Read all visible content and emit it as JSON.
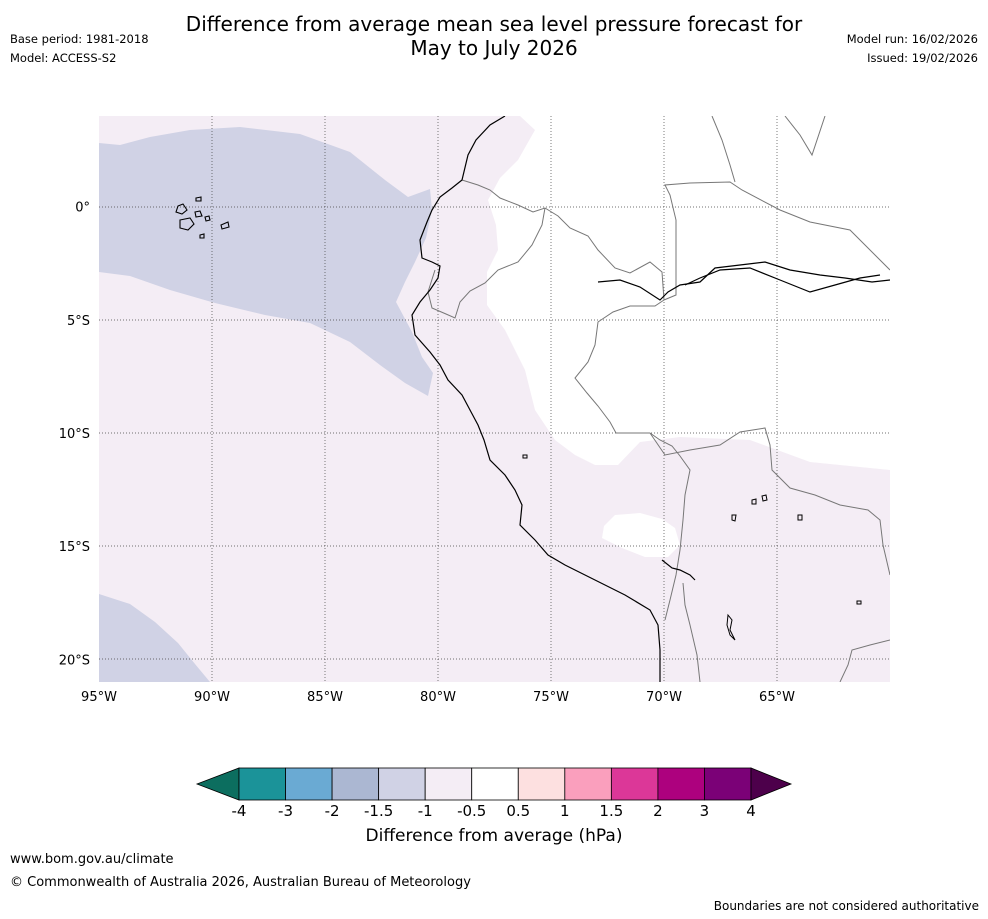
{
  "title": {
    "line1": "Difference from average mean sea level pressure forecast for",
    "line2": "May to July 2026"
  },
  "meta_left": {
    "base_period": "Base period: 1981-2018",
    "model": "Model: ACCESS-S2"
  },
  "meta_right": {
    "model_run": "Model run: 16/02/2026",
    "issued": "Issued: 19/02/2026"
  },
  "map": {
    "region": "Western South America and eastern Pacific",
    "lon_range": [
      -95,
      -60
    ],
    "lat_range": [
      -21,
      4
    ],
    "lat_labels": [
      "0°",
      "5°S",
      "10°S",
      "15°S",
      "20°S"
    ],
    "lat_values": [
      0,
      -5,
      -10,
      -15,
      -20
    ],
    "lon_labels": [
      "95°W",
      "90°W",
      "85°W",
      "80°W",
      "75°W",
      "70°W",
      "65°W"
    ],
    "lon_values": [
      -95,
      -90,
      -85,
      -80,
      -75,
      -70,
      -65
    ],
    "fill_categories": [
      {
        "range": "-1.5 to -1",
        "color": "#d0d2e5"
      },
      {
        "range": "-1 to -0.5",
        "color": "#f4edf5"
      },
      {
        "range": "-0.5 to 0.5",
        "color": "#ffffff"
      }
    ]
  },
  "colorbar": {
    "ticks": [
      "-4",
      "-3",
      "-2",
      "-1.5",
      "-1",
      "-0.5",
      "0.5",
      "1",
      "1.5",
      "2",
      "3",
      "4"
    ],
    "colors": [
      "#1b9399",
      "#6aaad3",
      "#abb7d2",
      "#d0d2e5",
      "#f4edf5",
      "#ffffff",
      "#fde0e0",
      "#fa9fbd",
      "#dc3798",
      "#ad017e",
      "#7b0177"
    ],
    "under_color": "#0c6e5f",
    "over_color": "#4d004b",
    "label": "Difference from average (hPa)"
  },
  "footer": {
    "url": "www.bom.gov.au/climate",
    "copyright": "© Commonwealth of Australia 2026, Australian Bureau of Meteorology",
    "note": "Boundaries are not considered authoritative"
  }
}
